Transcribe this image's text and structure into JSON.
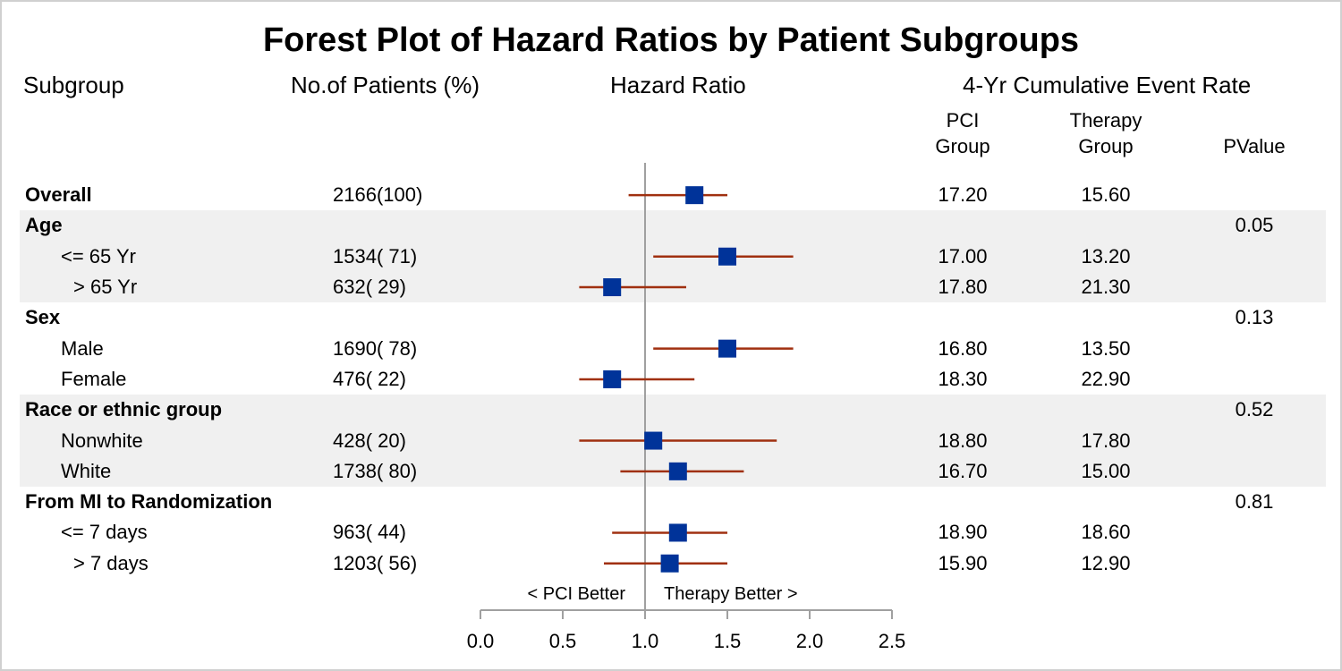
{
  "chart_data": {
    "type": "forest",
    "title": "Forest Plot of Hazard Ratios by Patient Subgroups",
    "columns": {
      "subgroup": "Subgroup",
      "patients": "No.of Patients (%)",
      "hazard_ratio": "Hazard Ratio",
      "event_rate": "4-Yr Cumulative Event Rate",
      "pci_line1": "PCI",
      "pci_line2": "Group",
      "therapy_line1": "Therapy",
      "therapy_line2": "Group",
      "pvalue": "PValue"
    },
    "reference_line": 1.0,
    "xlim": [
      0,
      2.5
    ],
    "xticks": [
      "0.0",
      "0.5",
      "1.0",
      "1.5",
      "2.0",
      "2.5"
    ],
    "xtick_values": [
      0,
      0.5,
      1.0,
      1.5,
      2.0,
      2.5
    ],
    "left_annotation": "< PCI Better",
    "right_annotation": "Therapy Better >",
    "colors": {
      "marker": "#003399",
      "ci_line": "#a03010",
      "reference": "#a0a0a0",
      "band": "#f0f0f0"
    },
    "rows": [
      {
        "label": "Overall",
        "indent": 0,
        "bold": true,
        "band": false,
        "patients": "2166(100)",
        "hr": 1.3,
        "low": 0.9,
        "high": 1.5,
        "pci": "17.20",
        "therapy": "15.60",
        "pvalue": ""
      },
      {
        "label": "Age",
        "indent": 0,
        "bold": true,
        "band": true,
        "patients": "",
        "hr": null,
        "low": null,
        "high": null,
        "pci": "",
        "therapy": "",
        "pvalue": "0.05"
      },
      {
        "label": "<= 65 Yr",
        "indent": 1,
        "bold": false,
        "band": true,
        "patients": "1534( 71)",
        "hr": 1.5,
        "low": 1.05,
        "high": 1.9,
        "pci": "17.00",
        "therapy": "13.20",
        "pvalue": ""
      },
      {
        "label": "> 65 Yr",
        "indent": 2,
        "bold": false,
        "band": true,
        "patients": "632( 29)",
        "hr": 0.8,
        "low": 0.6,
        "high": 1.25,
        "pci": "17.80",
        "therapy": "21.30",
        "pvalue": ""
      },
      {
        "label": "Sex",
        "indent": 0,
        "bold": true,
        "band": false,
        "patients": "",
        "hr": null,
        "low": null,
        "high": null,
        "pci": "",
        "therapy": "",
        "pvalue": "0.13"
      },
      {
        "label": "Male",
        "indent": 1,
        "bold": false,
        "band": false,
        "patients": "1690( 78)",
        "hr": 1.5,
        "low": 1.05,
        "high": 1.9,
        "pci": "16.80",
        "therapy": "13.50",
        "pvalue": ""
      },
      {
        "label": "Female",
        "indent": 1,
        "bold": false,
        "band": false,
        "patients": "476( 22)",
        "hr": 0.8,
        "low": 0.6,
        "high": 1.3,
        "pci": "18.30",
        "therapy": "22.90",
        "pvalue": ""
      },
      {
        "label": "Race or ethnic group",
        "indent": 0,
        "bold": true,
        "band": true,
        "patients": "",
        "hr": null,
        "low": null,
        "high": null,
        "pci": "",
        "therapy": "",
        "pvalue": "0.52"
      },
      {
        "label": "Nonwhite",
        "indent": 1,
        "bold": false,
        "band": true,
        "patients": "428( 20)",
        "hr": 1.05,
        "low": 0.6,
        "high": 1.8,
        "pci": "18.80",
        "therapy": "17.80",
        "pvalue": ""
      },
      {
        "label": "White",
        "indent": 1,
        "bold": false,
        "band": true,
        "patients": "1738( 80)",
        "hr": 1.2,
        "low": 0.85,
        "high": 1.6,
        "pci": "16.70",
        "therapy": "15.00",
        "pvalue": ""
      },
      {
        "label": "From MI to Randomization",
        "indent": 0,
        "bold": true,
        "band": false,
        "patients": "",
        "hr": null,
        "low": null,
        "high": null,
        "pci": "",
        "therapy": "",
        "pvalue": "0.81"
      },
      {
        "label": "<= 7 days",
        "indent": 1,
        "bold": false,
        "band": false,
        "patients": "963( 44)",
        "hr": 1.2,
        "low": 0.8,
        "high": 1.5,
        "pci": "18.90",
        "therapy": "18.60",
        "pvalue": ""
      },
      {
        "label": "> 7 days",
        "indent": 2,
        "bold": false,
        "band": false,
        "patients": "1203( 56)",
        "hr": 1.15,
        "low": 0.75,
        "high": 1.5,
        "pci": "15.90",
        "therapy": "12.90",
        "pvalue": ""
      }
    ]
  }
}
